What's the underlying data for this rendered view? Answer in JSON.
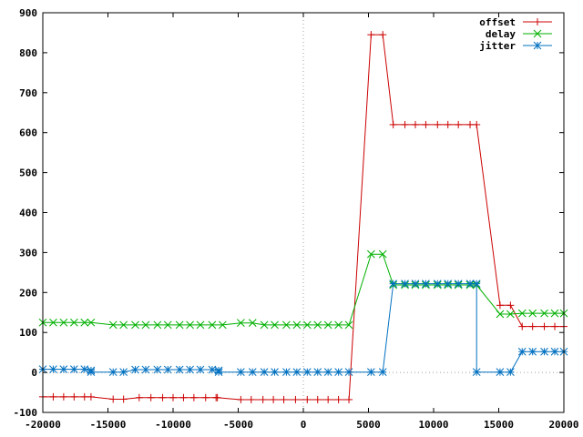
{
  "chart_data": {
    "type": "line",
    "title": "",
    "xlabel": "",
    "ylabel": "",
    "xlim": [
      -20000,
      20000
    ],
    "ylim": [
      -100,
      900
    ],
    "xticks": [
      -20000,
      -15000,
      -10000,
      -5000,
      0,
      5000,
      10000,
      15000,
      20000
    ],
    "yticks": [
      -100,
      0,
      100,
      200,
      300,
      400,
      500,
      600,
      700,
      800,
      900
    ],
    "grid": false,
    "zero_axes": "dotted",
    "legend_position": "top-right",
    "series": [
      {
        "name": "offset",
        "color": "#cc0000",
        "marker": "plus",
        "points": [
          [
            -20000,
            -61
          ],
          [
            -19200,
            -61
          ],
          [
            -18400,
            -61
          ],
          [
            -17600,
            -61
          ],
          [
            -16800,
            -61
          ],
          [
            -16300,
            -61
          ],
          [
            -14600,
            -67
          ],
          [
            -13800,
            -67
          ],
          [
            -12600,
            -63
          ],
          [
            -11700,
            -63
          ],
          [
            -10800,
            -63
          ],
          [
            -10000,
            -63
          ],
          [
            -9200,
            -63
          ],
          [
            -8400,
            -63
          ],
          [
            -7500,
            -63
          ],
          [
            -6700,
            -63
          ],
          [
            -6600,
            -63
          ],
          [
            -4800,
            -68
          ],
          [
            -4000,
            -68
          ],
          [
            -3100,
            -68
          ],
          [
            -2300,
            -68
          ],
          [
            -1500,
            -68
          ],
          [
            -600,
            -68
          ],
          [
            300,
            -68
          ],
          [
            1100,
            -68
          ],
          [
            1900,
            -68
          ],
          [
            2700,
            -68
          ],
          [
            3500,
            -68
          ],
          [
            5200,
            845
          ],
          [
            6100,
            845
          ],
          [
            6900,
            620
          ],
          [
            7800,
            620
          ],
          [
            8600,
            620
          ],
          [
            9400,
            620
          ],
          [
            10300,
            620
          ],
          [
            11100,
            620
          ],
          [
            11900,
            620
          ],
          [
            12800,
            620
          ],
          [
            13300,
            620
          ],
          [
            15100,
            168
          ],
          [
            15900,
            168
          ],
          [
            16800,
            115
          ],
          [
            17600,
            115
          ],
          [
            18500,
            115
          ],
          [
            19300,
            115
          ],
          [
            20000,
            115
          ]
        ]
      },
      {
        "name": "delay",
        "color": "#00b000",
        "marker": "cross",
        "points": [
          [
            -20000,
            125
          ],
          [
            -19200,
            125
          ],
          [
            -18400,
            125
          ],
          [
            -17600,
            125
          ],
          [
            -16800,
            125
          ],
          [
            -16300,
            125
          ],
          [
            -14600,
            119
          ],
          [
            -13800,
            119
          ],
          [
            -12900,
            119
          ],
          [
            -12100,
            119
          ],
          [
            -11200,
            119
          ],
          [
            -10400,
            119
          ],
          [
            -9500,
            119
          ],
          [
            -8700,
            119
          ],
          [
            -7900,
            119
          ],
          [
            -7000,
            119
          ],
          [
            -6200,
            119
          ],
          [
            -4800,
            124
          ],
          [
            -3900,
            124
          ],
          [
            -3000,
            119
          ],
          [
            -2200,
            119
          ],
          [
            -1300,
            119
          ],
          [
            -500,
            119
          ],
          [
            300,
            119
          ],
          [
            1100,
            119
          ],
          [
            1900,
            119
          ],
          [
            2700,
            119
          ],
          [
            3500,
            119
          ],
          [
            5200,
            296
          ],
          [
            6100,
            296
          ],
          [
            6900,
            219
          ],
          [
            7800,
            219
          ],
          [
            8600,
            219
          ],
          [
            9400,
            219
          ],
          [
            10300,
            219
          ],
          [
            11100,
            219
          ],
          [
            11900,
            219
          ],
          [
            12800,
            219
          ],
          [
            13300,
            219
          ],
          [
            15100,
            146
          ],
          [
            15900,
            146
          ],
          [
            16800,
            148
          ],
          [
            17600,
            148
          ],
          [
            18500,
            148
          ],
          [
            19300,
            148
          ],
          [
            20000,
            148
          ]
        ]
      },
      {
        "name": "jitter",
        "color": "#0070c0",
        "marker": "star",
        "points": [
          [
            -20000,
            8
          ],
          [
            -19200,
            8
          ],
          [
            -18400,
            8
          ],
          [
            -17600,
            8
          ],
          [
            -16800,
            8
          ],
          [
            -16300,
            5
          ],
          [
            -16300,
            1
          ],
          [
            -14600,
            1
          ],
          [
            -13800,
            1
          ],
          [
            -12900,
            7
          ],
          [
            -12100,
            7
          ],
          [
            -11200,
            7
          ],
          [
            -10400,
            7
          ],
          [
            -9500,
            7
          ],
          [
            -8700,
            7
          ],
          [
            -7900,
            7
          ],
          [
            -7000,
            7
          ],
          [
            -6500,
            5
          ],
          [
            -6500,
            1
          ],
          [
            -4800,
            1
          ],
          [
            -3900,
            1
          ],
          [
            -3000,
            1
          ],
          [
            -2200,
            1
          ],
          [
            -1300,
            1
          ],
          [
            -500,
            1
          ],
          [
            300,
            1
          ],
          [
            1100,
            1
          ],
          [
            1900,
            1
          ],
          [
            2700,
            1
          ],
          [
            3500,
            1
          ],
          [
            5200,
            1
          ],
          [
            6100,
            1
          ],
          [
            6900,
            222
          ],
          [
            7800,
            222
          ],
          [
            8600,
            222
          ],
          [
            9400,
            222
          ],
          [
            10300,
            222
          ],
          [
            11100,
            222
          ],
          [
            11900,
            222
          ],
          [
            12800,
            222
          ],
          [
            13300,
            222
          ],
          [
            13300,
            1
          ],
          [
            15100,
            1
          ],
          [
            15900,
            1
          ],
          [
            16800,
            52
          ],
          [
            17600,
            52
          ],
          [
            18500,
            52
          ],
          [
            19300,
            52
          ],
          [
            20000,
            52
          ]
        ]
      }
    ]
  }
}
